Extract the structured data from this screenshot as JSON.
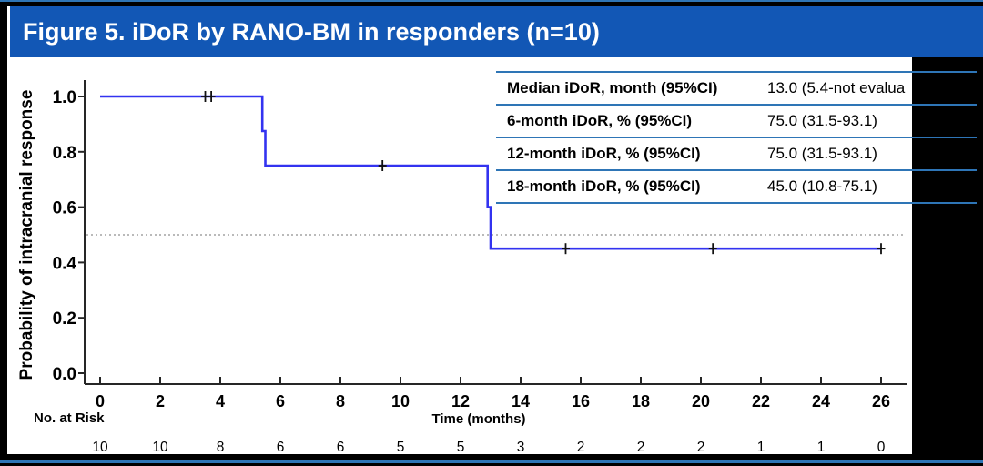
{
  "header": {
    "title": "Figure 5. iDoR by RANO-BM in responders (n=10)"
  },
  "colors": {
    "header_bg": "#1257b5",
    "accent": "#2e75b6",
    "curve": "#3333f0",
    "axis": "#262626",
    "reference": "#a3a3a3",
    "censor": "#111111"
  },
  "stats_table": {
    "rows": [
      {
        "label": "Median iDoR, month (95%CI)",
        "value": "13.0 (5.4-not evalua"
      },
      {
        "label": "6-month iDoR, % (95%CI)",
        "value": "75.0 (31.5-93.1)"
      },
      {
        "label": "12-month iDoR, % (95%CI)",
        "value": "75.0 (31.5-93.1)"
      },
      {
        "label": "18-month iDoR, % (95%CI)",
        "value": "45.0 (10.8-75.1)"
      }
    ]
  },
  "chart_data": {
    "type": "line",
    "subtype": "kaplan_meier_step",
    "title": "",
    "xlabel": "Time (months)",
    "ylabel": "Probability of intracranial response",
    "xlim": [
      0,
      26
    ],
    "ylim": [
      0.0,
      1.0
    ],
    "x_ticks": [
      0,
      2,
      4,
      6,
      8,
      10,
      12,
      14,
      16,
      18,
      20,
      22,
      24,
      26
    ],
    "y_tick_labels": [
      "0.0",
      "0.2",
      "0.4",
      "0.6",
      "0.8",
      "1.0"
    ],
    "grid": false,
    "legend": "none",
    "reference_line_y": 0.5,
    "series": [
      {
        "name": "iDoR by RANO-BM (responders)",
        "step_points": [
          [
            0,
            1.0
          ],
          [
            5.4,
            1.0
          ],
          [
            5.4,
            0.875
          ],
          [
            5.5,
            0.875
          ],
          [
            5.5,
            0.75
          ],
          [
            12.9,
            0.75
          ],
          [
            12.9,
            0.6
          ],
          [
            13.0,
            0.6
          ],
          [
            13.0,
            0.45
          ],
          [
            26,
            0.45
          ]
        ],
        "censor_marks": [
          [
            3.5,
            1.0
          ],
          [
            3.7,
            1.0
          ],
          [
            9.4,
            0.75
          ],
          [
            15.5,
            0.45
          ],
          [
            20.4,
            0.45
          ],
          [
            26.0,
            0.45
          ]
        ]
      }
    ],
    "risk_table": {
      "label": "No. at Risk",
      "times": [
        0,
        2,
        4,
        6,
        8,
        10,
        12,
        14,
        16,
        18,
        20,
        22,
        24,
        26
      ],
      "counts": [
        10,
        10,
        8,
        6,
        6,
        5,
        5,
        3,
        2,
        2,
        2,
        1,
        1,
        0
      ]
    }
  }
}
